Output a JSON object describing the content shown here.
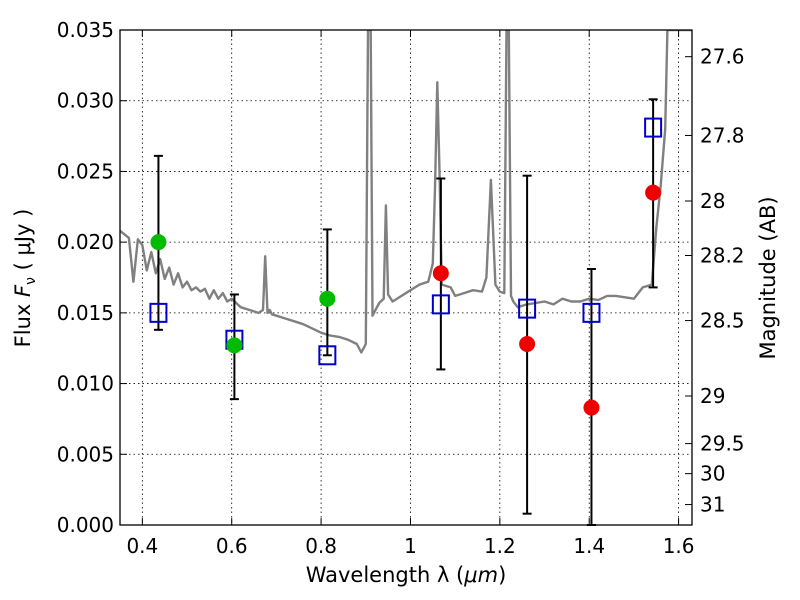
{
  "chart_data": {
    "type": "scatter",
    "xlabel": "Wavelength  λ (μm)",
    "ylabel": "Flux  F_ν  ( μJy )",
    "ylabel_parts": {
      "prefix": "Flux  ",
      "symbol": "F",
      "subscript": "ν",
      "suffix": "  ( μJy )"
    },
    "xlabel_parts": {
      "prefix": "Wavelength  λ (",
      "unit": "μm",
      "suffix": ")"
    },
    "y2label": "Magnitude (AB)",
    "xlim": [
      0.35,
      1.63
    ],
    "ylim": [
      0,
      0.035
    ],
    "grid": true,
    "x_ticks": [
      {
        "value": 0.4,
        "label": "0.4"
      },
      {
        "value": 0.6,
        "label": "0.6"
      },
      {
        "value": 0.8,
        "label": "0.8"
      },
      {
        "value": 1.0,
        "label": "1"
      },
      {
        "value": 1.2,
        "label": "1.2"
      },
      {
        "value": 1.4,
        "label": "1.4"
      },
      {
        "value": 1.6,
        "label": "1.6"
      }
    ],
    "y_ticks": [
      {
        "value": 0.0,
        "label": "0.000"
      },
      {
        "value": 0.005,
        "label": "0.005"
      },
      {
        "value": 0.01,
        "label": "0.010"
      },
      {
        "value": 0.015,
        "label": "0.015"
      },
      {
        "value": 0.02,
        "label": "0.020"
      },
      {
        "value": 0.025,
        "label": "0.025"
      },
      {
        "value": 0.03,
        "label": "0.030"
      },
      {
        "value": 0.035,
        "label": "0.035"
      }
    ],
    "y2_ticks": [
      {
        "value": 27.6,
        "label": "27.6"
      },
      {
        "value": 27.8,
        "label": "27.8"
      },
      {
        "value": 28.0,
        "label": "28"
      },
      {
        "value": 28.2,
        "label": "28.2"
      },
      {
        "value": 28.5,
        "label": "28.5"
      },
      {
        "value": 29.0,
        "label": "29"
      },
      {
        "value": 29.5,
        "label": "29.5"
      },
      {
        "value": 30.0,
        "label": "30"
      },
      {
        "value": 31.0,
        "label": "31"
      }
    ],
    "series": [
      {
        "kind": "line",
        "color": "#808080",
        "x": [
          0.35,
          0.37,
          0.38,
          0.39,
          0.4,
          0.41,
          0.42,
          0.43,
          0.44,
          0.45,
          0.46,
          0.47,
          0.48,
          0.49,
          0.5,
          0.51,
          0.52,
          0.53,
          0.54,
          0.55,
          0.56,
          0.57,
          0.58,
          0.59,
          0.6,
          0.62,
          0.64,
          0.66,
          0.67,
          0.675,
          0.68,
          0.685,
          0.69,
          0.7,
          0.72,
          0.74,
          0.76,
          0.78,
          0.8,
          0.82,
          0.84,
          0.86,
          0.88,
          0.89,
          0.9,
          0.905,
          0.908,
          0.911,
          0.915,
          0.92,
          0.93,
          0.94,
          0.945,
          0.95,
          0.96,
          0.98,
          1.0,
          1.02,
          1.04,
          1.05,
          1.055,
          1.06,
          1.065,
          1.07,
          1.08,
          1.09,
          1.1,
          1.12,
          1.14,
          1.16,
          1.17,
          1.18,
          1.19,
          1.2,
          1.21,
          1.215,
          1.218,
          1.22,
          1.225,
          1.23,
          1.24,
          1.26,
          1.28,
          1.3,
          1.32,
          1.34,
          1.36,
          1.38,
          1.4,
          1.42,
          1.44,
          1.46,
          1.48,
          1.5,
          1.52,
          1.54,
          1.55,
          1.56,
          1.57,
          1.575,
          1.58,
          1.59,
          1.6,
          1.61,
          1.62,
          1.63
        ],
        "y": [
          0.0208,
          0.0203,
          0.0172,
          0.0202,
          0.0198,
          0.018,
          0.0193,
          0.0178,
          0.0188,
          0.0174,
          0.0182,
          0.017,
          0.0178,
          0.0168,
          0.0172,
          0.0166,
          0.0168,
          0.0165,
          0.0167,
          0.016,
          0.0166,
          0.016,
          0.0164,
          0.0158,
          0.016,
          0.0154,
          0.0152,
          0.015,
          0.0152,
          0.019,
          0.015,
          0.0152,
          0.0149,
          0.0148,
          0.0146,
          0.0144,
          0.0142,
          0.0139,
          0.0136,
          0.0134,
          0.0133,
          0.0131,
          0.0128,
          0.0122,
          0.0128,
          0.035,
          0.035,
          0.035,
          0.0148,
          0.0151,
          0.0157,
          0.016,
          0.0226,
          0.0163,
          0.0158,
          0.0162,
          0.0166,
          0.017,
          0.0172,
          0.0185,
          0.0238,
          0.0313,
          0.025,
          0.017,
          0.0169,
          0.0168,
          0.0162,
          0.0164,
          0.0166,
          0.0165,
          0.0175,
          0.0244,
          0.017,
          0.0165,
          0.0164,
          0.035,
          0.035,
          0.035,
          0.0162,
          0.0158,
          0.0154,
          0.0156,
          0.0157,
          0.0158,
          0.0156,
          0.016,
          0.0158,
          0.0158,
          0.016,
          0.0159,
          0.0162,
          0.0162,
          0.0161,
          0.016,
          0.0168,
          0.017,
          0.021,
          0.024,
          0.028,
          0.035,
          0.035,
          0.035,
          0.035,
          0.035,
          0.035,
          0.035
        ]
      },
      {
        "kind": "squares",
        "color": "#0000cc",
        "x": [
          0.436,
          0.606,
          0.814,
          1.068,
          1.261,
          1.405,
          1.543
        ],
        "y": [
          0.015,
          0.0131,
          0.012,
          0.0156,
          0.0153,
          0.015,
          0.0281
        ]
      },
      {
        "kind": "circles",
        "color": "#00bb00",
        "x": [
          0.436,
          0.606,
          0.814
        ],
        "y": [
          0.02,
          0.0127,
          0.016
        ]
      },
      {
        "kind": "circles",
        "color": "#ee0000",
        "x": [
          1.068,
          1.261,
          1.405,
          1.543
        ],
        "y": [
          0.0178,
          0.0128,
          0.0083,
          0.0235
        ]
      }
    ],
    "error_bars": [
      {
        "x": 0.436,
        "low": 0.0138,
        "high": 0.0261
      },
      {
        "x": 0.606,
        "low": 0.0089,
        "high": 0.0163
      },
      {
        "x": 0.814,
        "low": 0.012,
        "high": 0.0209
      },
      {
        "x": 1.068,
        "low": 0.011,
        "high": 0.0245
      },
      {
        "x": 1.261,
        "low": 0.0008,
        "high": 0.0247
      },
      {
        "x": 1.405,
        "low": 0.0,
        "high": 0.0181
      },
      {
        "x": 1.543,
        "low": 0.0168,
        "high": 0.0301
      }
    ]
  }
}
